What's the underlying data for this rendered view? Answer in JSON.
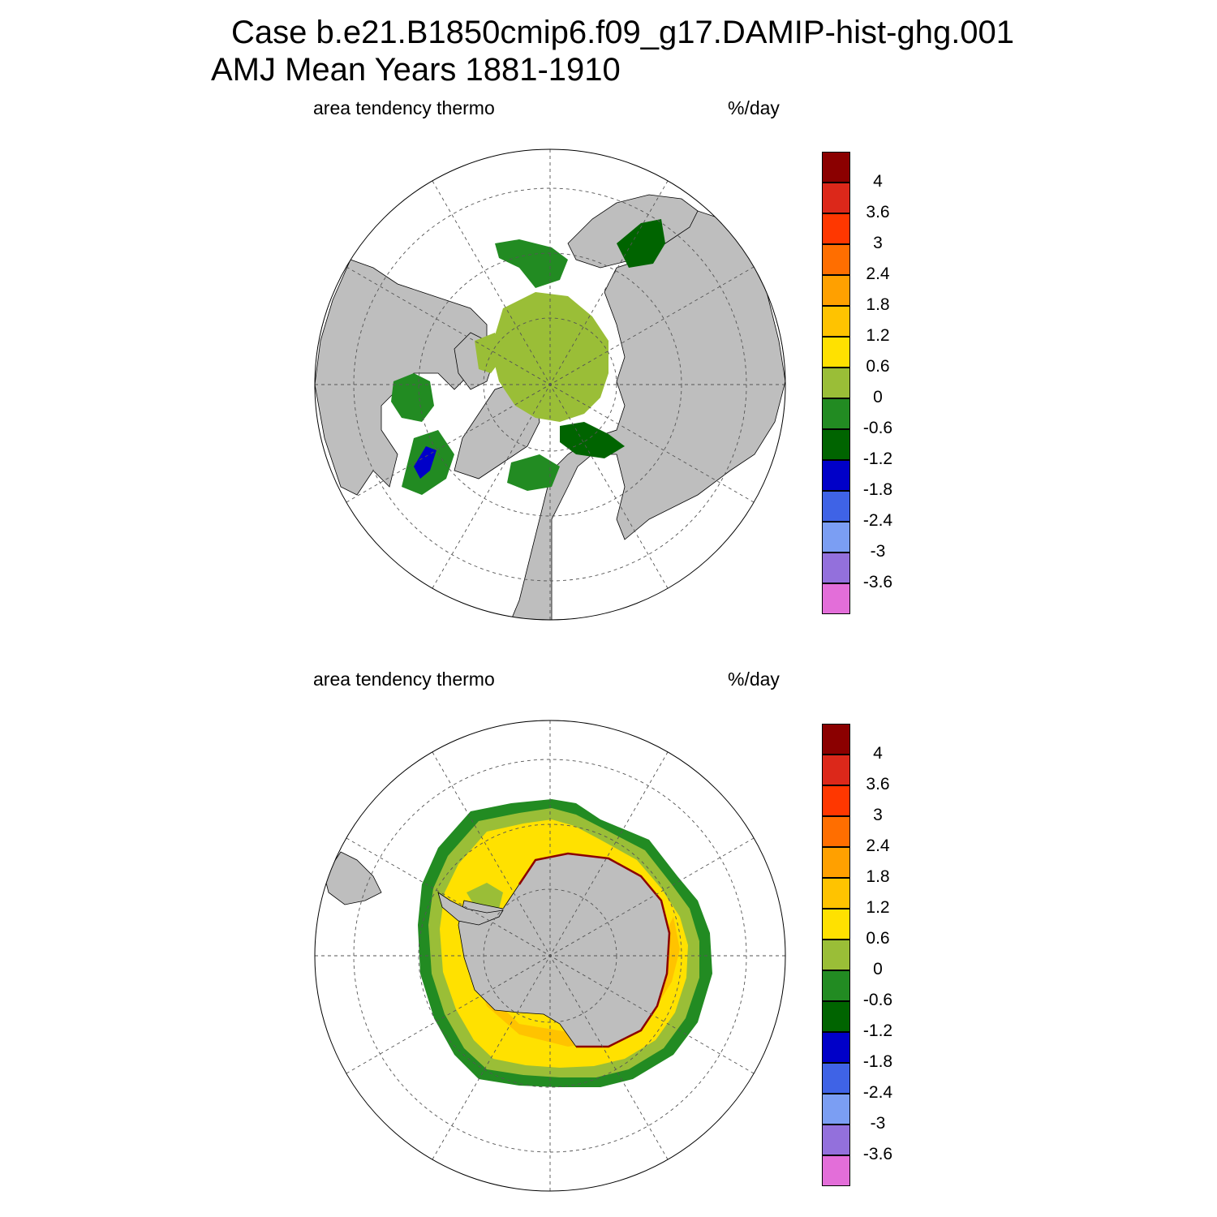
{
  "figure": {
    "title_line1": "Case b.e21.B1850cmip6.f09_g17.DAMIP-hist-ghg.001",
    "title_line2": "AMJ Mean   Years 1881-1910"
  },
  "panels": [
    {
      "hemisphere": "north",
      "left_label": "area tendency thermo",
      "right_label": "%/day"
    },
    {
      "hemisphere": "south",
      "left_label": "area tendency thermo",
      "right_label": "%/day"
    }
  ],
  "colorbar": {
    "colors": [
      "#e36ed9",
      "#9370dc",
      "#7b9ef3",
      "#3f63e6",
      "#0000c8",
      "#006400",
      "#228b22",
      "#9abe37",
      "#ffe100",
      "#ffc300",
      "#ffa000",
      "#ff6e00",
      "#ff3700",
      "#dc281a",
      "#8b0000"
    ],
    "labels": [
      "-3.6",
      "-3",
      "-2.4",
      "-1.8",
      "-1.2",
      "-0.6",
      "0",
      "0.6",
      "1.2",
      "1.8",
      "2.4",
      "3",
      "3.6",
      "4"
    ]
  },
  "colors": {
    "land": "#bebebe",
    "ocean": "#ffffff",
    "grid": "#555555"
  }
}
